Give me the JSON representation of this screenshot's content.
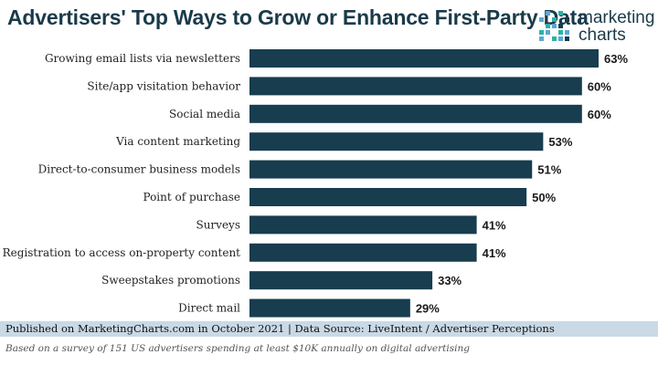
{
  "title": "Advertisers' Top Ways to Grow or Enhance First-Party Data",
  "logo": {
    "line1": "marketing",
    "line2": "charts",
    "dot_colors": [
      "#2bb3a3",
      "#5aa7d6",
      "#1a3a4a"
    ]
  },
  "colors": {
    "bar": "#173d4f",
    "footer_bg": "#c9d9e6"
  },
  "chart_data": {
    "type": "bar",
    "orientation": "horizontal",
    "categories": [
      "Growing email lists via newsletters",
      "Site/app visitation behavior",
      "Social media",
      "Via content marketing",
      "Direct-to-consumer business models",
      "Point of purchase",
      "Surveys",
      "Registration to access on-property content",
      "Sweepstakes promotions",
      "Direct mail"
    ],
    "values": [
      63,
      60,
      60,
      53,
      51,
      50,
      41,
      41,
      33,
      29
    ],
    "value_labels": [
      "63%",
      "60%",
      "60%",
      "53%",
      "51%",
      "50%",
      "41%",
      "41%",
      "33%",
      "29%"
    ],
    "xlim": [
      0,
      63
    ],
    "grid": false,
    "legend": "none"
  },
  "footer": "Published on MarketingCharts.com in October 2021 | Data Source: LiveIntent / Advertiser Perceptions",
  "note": "Based on a survey of 151 US advertisers spending at least $10K annually on digital advertising"
}
